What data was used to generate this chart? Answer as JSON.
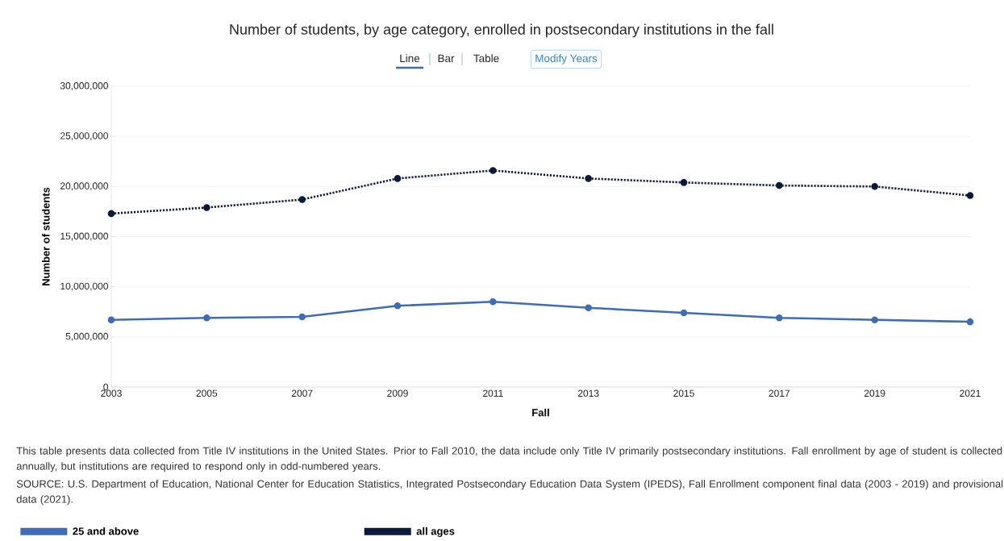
{
  "chart_data": {
    "type": "line",
    "title": "Number of students, by age category, enrolled in postsecondary institutions in the fall",
    "xlabel": "Fall",
    "ylabel": "Number of students",
    "x": [
      2003,
      2005,
      2007,
      2009,
      2011,
      2013,
      2015,
      2017,
      2019,
      2021
    ],
    "series": [
      {
        "name": "25 and above",
        "color": "#3f6db5",
        "line_style": "solid",
        "values": [
          6700000,
          6900000,
          7000000,
          8100000,
          8500000,
          7900000,
          7400000,
          6900000,
          6700000,
          6500000
        ]
      },
      {
        "name": "all ages",
        "color": "#0b1a3a",
        "line_style": "dotted",
        "values": [
          17300000,
          17900000,
          18700000,
          20800000,
          21600000,
          20800000,
          20400000,
          20100000,
          20000000,
          19100000
        ]
      }
    ],
    "xlim": [
      2003,
      2021
    ],
    "xticks": [
      2003,
      2005,
      2007,
      2009,
      2011,
      2013,
      2015,
      2017,
      2019,
      2021
    ],
    "ylim": [
      0,
      30000000
    ],
    "yticks": [
      {
        "value": 0,
        "label": "0"
      },
      {
        "value": 5000000,
        "label": "5,000,000"
      },
      {
        "value": 10000000,
        "label": "10,000,000"
      },
      {
        "value": 15000000,
        "label": "15,000,000"
      },
      {
        "value": 20000000,
        "label": "20,000,000"
      },
      {
        "value": 25000000,
        "label": "25,000,000"
      },
      {
        "value": 30000000,
        "label": "30,000,000"
      }
    ],
    "grid": "y",
    "marker": "circle",
    "legend": "bottom",
    "annotations": [
      "Line",
      "Bar",
      "Table",
      "Modify Years",
      "This table presents data collected from Title IV institutions in the United States. Prior to Fall 2010, the data include only Title IV primarily postsecondary institutions. Fall enrollment by age of student is collected annually, but institutions are required to respond only in odd-numbered years.",
      "SOURCE: U.S. Department of Education, National Center for Education Statistics, Integrated Postsecondary Education Data System (IPEDS), Fall Enrollment component final data (2003 - 2019) and provisional data (2021)."
    ]
  }
}
